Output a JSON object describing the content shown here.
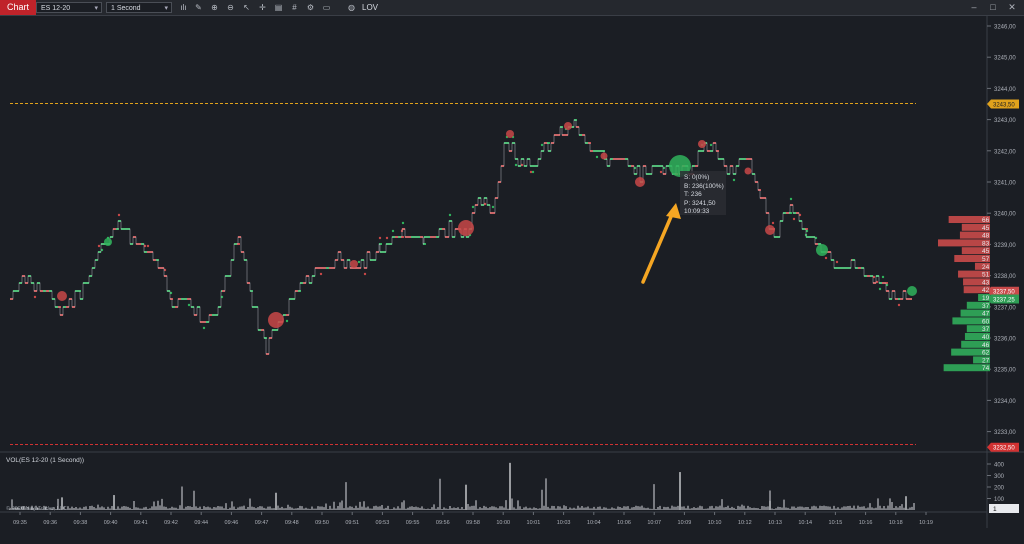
{
  "toolbar": {
    "tab_label": "Chart",
    "instrument": "ES 12-20",
    "interval": "1 Second",
    "indicator_label": "LOV",
    "icons": [
      "bar-type-icon",
      "draw-tool-icon",
      "zoom-in-icon",
      "zoom-out-icon",
      "cursor-icon",
      "crosshair-icon",
      "data-box-icon",
      "hash-icon",
      "properties-icon",
      "template-icon",
      "chart-trader-icon"
    ]
  },
  "window_controls": [
    "minimize-icon",
    "maximize-icon",
    "close-icon"
  ],
  "price_axis": {
    "ticks": [
      "3246,00",
      "3245,00",
      "3244,00",
      "3243,00",
      "3242,00",
      "3241,00",
      "3240,00",
      "3239,00",
      "3238,00",
      "3237,00",
      "3236,00",
      "3235,00",
      "3234,00",
      "3233,00"
    ],
    "orange_marker": "3243,50",
    "red_marker": "3232,50",
    "ask_marker": "3237,50",
    "bid_marker": "3237,25",
    "marker_colors": {
      "orange": "#e0a21c",
      "red": "#d23232",
      "ask": "#c94a4a",
      "bid": "#2e9e55"
    }
  },
  "tooltip": {
    "lines": [
      "S: 0(0%)",
      "B: 236(100%)",
      "T: 236",
      "P: 3241,50",
      "10:09:33"
    ]
  },
  "order_book": {
    "ask_sizes": [
      "66",
      "45",
      "48",
      "83",
      "45",
      "57",
      "24",
      "51",
      "43",
      "42"
    ],
    "bid_sizes": [
      "19",
      "37",
      "47",
      "60",
      "37",
      "40",
      "46",
      "62",
      "27",
      "74"
    ]
  },
  "volume_panel": {
    "label": "VOL(ES 12-20 (1 Second))",
    "ticks": [
      "400",
      "300",
      "200",
      "100"
    ],
    "current_value": "1"
  },
  "copyright": "© 2020 NinjaTrader, LLC",
  "time_axis": [
    "09:35",
    "09:36",
    "09:38",
    "09:40",
    "09:41",
    "09:42",
    "09:44",
    "09:46",
    "09:47",
    "09:48",
    "09:50",
    "09:51",
    "09:53",
    "09:55",
    "09:56",
    "09:58",
    "10:00",
    "10:01",
    "10:03",
    "10:04",
    "10:06",
    "10:07",
    "10:09",
    "10:10",
    "10:12",
    "10:13",
    "10:14",
    "10:15",
    "10:16",
    "10:18",
    "10:19"
  ],
  "colors": {
    "up": "#2fb35c",
    "down": "#c84848",
    "background": "#1b1e24",
    "arrow": "#f5a623"
  }
}
